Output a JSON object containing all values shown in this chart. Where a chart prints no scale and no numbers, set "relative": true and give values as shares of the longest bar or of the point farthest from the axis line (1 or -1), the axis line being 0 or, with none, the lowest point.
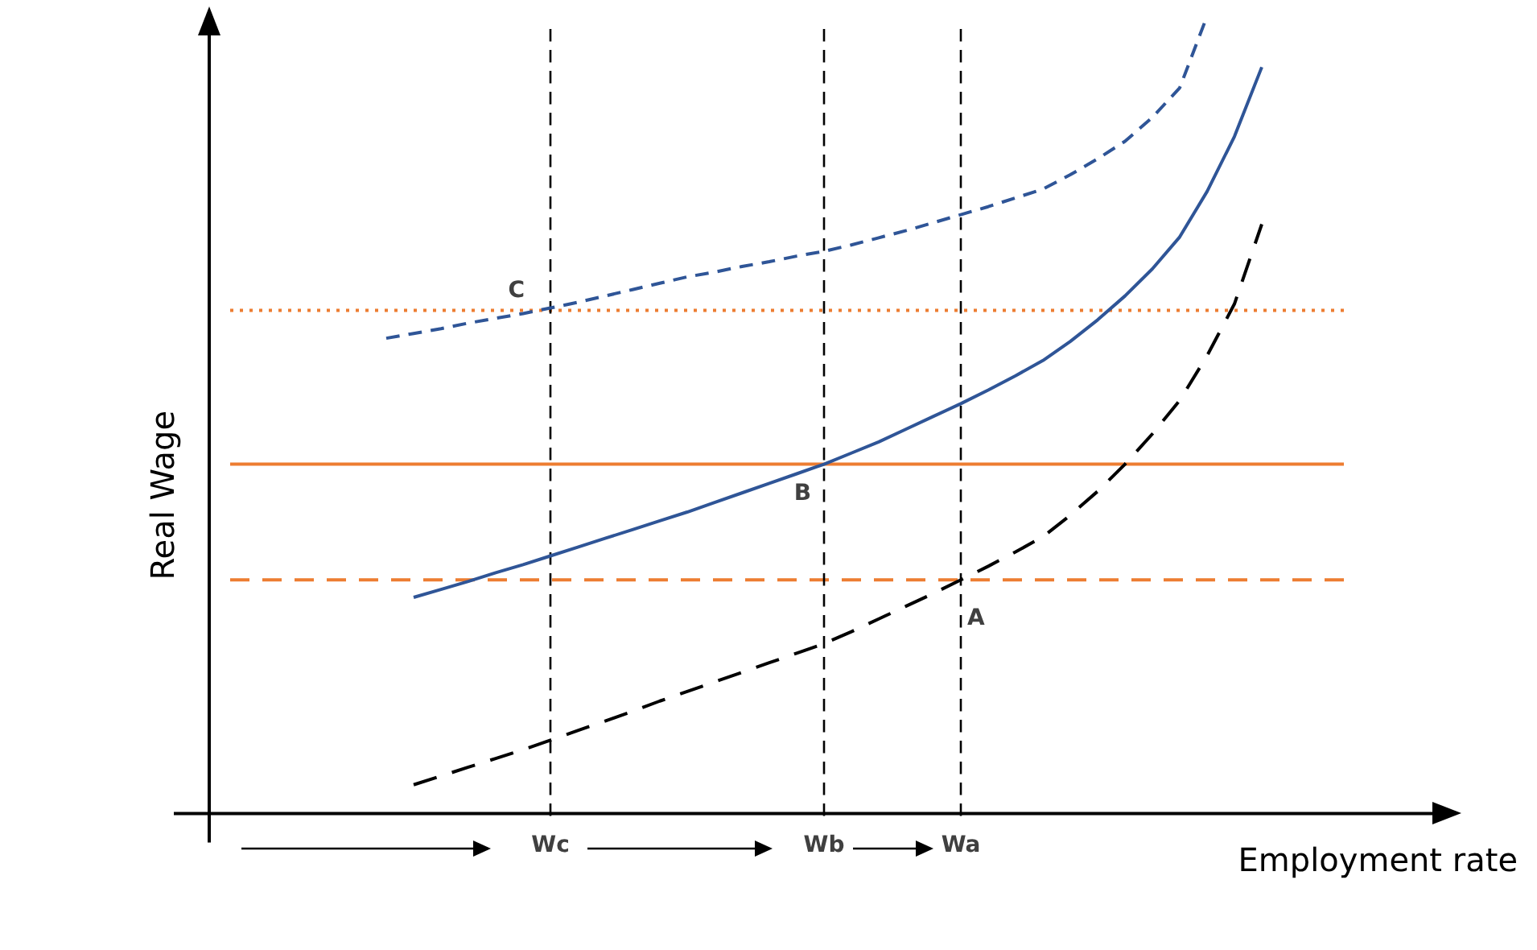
{
  "chart_data": {
    "type": "line",
    "relative": true,
    "xlabel": "Employment rate",
    "ylabel": "Real Wage",
    "marker": "none",
    "categories": [
      null,
      null,
      null,
      null,
      null,
      null,
      null,
      null,
      null,
      null,
      null,
      null,
      "Wc",
      null,
      null,
      null,
      null,
      null,
      null,
      null,
      null,
      null,
      "Wb",
      null,
      null,
      null,
      null,
      "Wa",
      null,
      null,
      null,
      null,
      null,
      null,
      null,
      null,
      null,
      null,
      null,
      null,
      null,
      null
    ],
    "series": [
      {
        "color": "#2f5597",
        "line_style": "dashed",
        "values": [
          null,
          null,
          null,
          null,
          null,
          null,
          0.596,
          0.602,
          0.608,
          0.615,
          0.621,
          0.627,
          0.634,
          0.641,
          0.649,
          0.657,
          0.665,
          0.673,
          0.679,
          0.686,
          0.692,
          0.699,
          0.705,
          0.713,
          0.722,
          0.731,
          0.741,
          0.751,
          0.761,
          0.772,
          0.783,
          0.801,
          0.821,
          0.843,
          0.873,
          0.91,
          1,
          null,
          null,
          null,
          null,
          null
        ]
      },
      {
        "color": "#2f5597",
        "line_style": "solid",
        "values": [
          null,
          null,
          null,
          null,
          null,
          null,
          null,
          0.271,
          0.281,
          0.291,
          0.302,
          0.312,
          0.323,
          0.334,
          0.345,
          0.356,
          0.367,
          0.378,
          0.39,
          0.402,
          0.414,
          0.426,
          0.438,
          0.452,
          0.466,
          0.482,
          0.498,
          0.514,
          0.531,
          0.549,
          0.568,
          0.592,
          0.619,
          0.649,
          0.683,
          0.723,
          0.78,
          0.849,
          0.936,
          null,
          null,
          null
        ]
      },
      {
        "color": "#000000",
        "line_style": "dashed",
        "values": [
          null,
          null,
          null,
          null,
          null,
          null,
          null,
          0.036,
          0.047,
          0.058,
          0.069,
          0.08,
          0.092,
          0.104,
          0.116,
          0.128,
          0.141,
          0.153,
          0.165,
          0.177,
          0.189,
          0.201,
          0.213,
          0.228,
          0.244,
          0.26,
          0.276,
          0.293,
          0.31,
          0.328,
          0.347,
          0.374,
          0.404,
          0.438,
          0.476,
          0.518,
          0.574,
          0.639,
          0.739,
          null,
          null,
          null
        ]
      }
    ],
    "ref_lines": [
      {
        "axis": "y",
        "value": 0.631,
        "color": "#ed7d31",
        "line_style": "dotted"
      },
      {
        "axis": "y",
        "value": 0.438,
        "color": "#ed7d31",
        "line_style": "solid"
      },
      {
        "axis": "y",
        "value": 0.293,
        "color": "#ed7d31",
        "line_style": "dashed"
      },
      {
        "axis": "x",
        "value": "Wc",
        "color": "#000000",
        "line_style": "dashed"
      },
      {
        "axis": "x",
        "value": "Wb",
        "color": "#000000",
        "line_style": "dashed"
      },
      {
        "axis": "x",
        "value": "Wa",
        "color": "#000000",
        "line_style": "dashed"
      }
    ],
    "annotations": [
      {
        "text": "C",
        "x": "Wc",
        "y": 0.631
      },
      {
        "text": "B",
        "x": "Wb",
        "y": 0.438
      },
      {
        "text": "A",
        "x": "Wa",
        "y": 0.293
      }
    ]
  }
}
